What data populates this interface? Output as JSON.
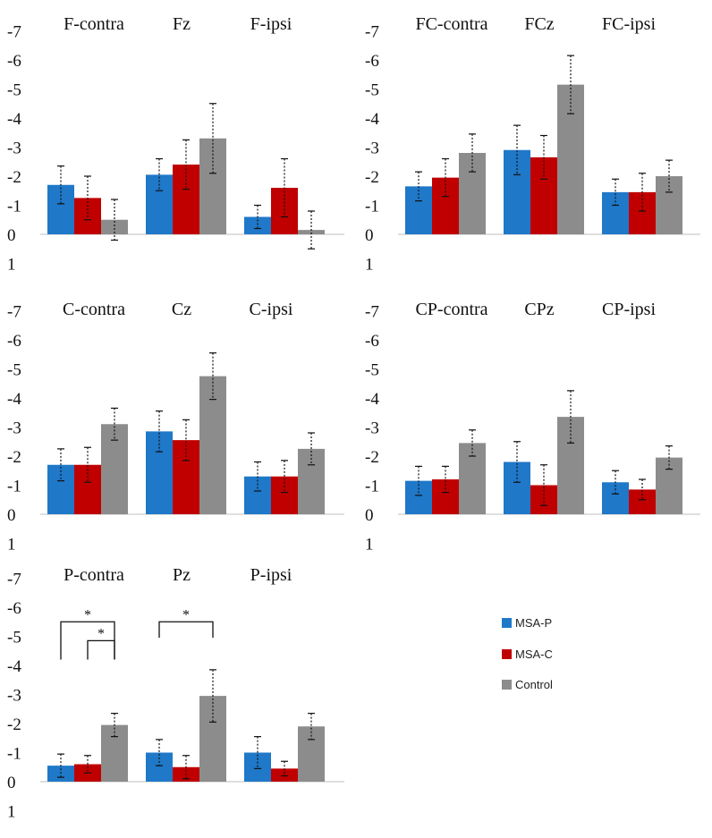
{
  "colors": {
    "MSA-P": "#1f78c8",
    "MSA-C": "#c00000",
    "Control": "#8c8c8c"
  },
  "legend": {
    "items": [
      {
        "label": "MSA-P",
        "color": "#1f78c8"
      },
      {
        "label": "MSA-C",
        "color": "#c00000"
      },
      {
        "label": "Control",
        "color": "#8c8c8c"
      }
    ]
  },
  "chart_data": [
    {
      "type": "bar",
      "region": "F",
      "yticks": [
        "-7",
        "-6",
        "-5",
        "-4",
        "-3",
        "-2",
        "-1",
        "0",
        "1"
      ],
      "ylim": [
        1,
        -7
      ],
      "categories": [
        "F-contra",
        "Fz",
        "F-ipsi"
      ],
      "series": [
        {
          "name": "MSA-P",
          "values": [
            -1.7,
            -2.05,
            -0.6
          ],
          "errors": [
            0.65,
            0.55,
            0.4
          ]
        },
        {
          "name": "MSA-C",
          "values": [
            -1.25,
            -2.4,
            -1.6
          ],
          "errors": [
            0.75,
            0.85,
            1.0
          ]
        },
        {
          "name": "Control",
          "values": [
            -0.5,
            -3.3,
            -0.15
          ],
          "errors": [
            0.7,
            1.2,
            0.65
          ]
        }
      ],
      "annotations": []
    },
    {
      "type": "bar",
      "region": "FC",
      "yticks": [
        "-7",
        "-6",
        "-5",
        "-4",
        "-3",
        "-2",
        "-1",
        "0",
        "1"
      ],
      "ylim": [
        1,
        -7
      ],
      "categories": [
        "FC-contra",
        "FCz",
        "FC-ipsi"
      ],
      "series": [
        {
          "name": "MSA-P",
          "values": [
            -1.65,
            -2.9,
            -1.45
          ],
          "errors": [
            0.5,
            0.85,
            0.45
          ]
        },
        {
          "name": "MSA-C",
          "values": [
            -1.95,
            -2.65,
            -1.45
          ],
          "errors": [
            0.65,
            0.75,
            0.65
          ]
        },
        {
          "name": "Control",
          "values": [
            -2.8,
            -5.15,
            -2.0
          ],
          "errors": [
            0.65,
            1.0,
            0.55
          ]
        }
      ],
      "annotations": []
    },
    {
      "type": "bar",
      "region": "C",
      "yticks": [
        "-7",
        "-6",
        "-5",
        "-4",
        "-3",
        "-2",
        "-1",
        "0",
        "1"
      ],
      "ylim": [
        1,
        -7
      ],
      "categories": [
        "C-contra",
        "Cz",
        "C-ipsi"
      ],
      "series": [
        {
          "name": "MSA-P",
          "values": [
            -1.7,
            -2.85,
            -1.3
          ],
          "errors": [
            0.55,
            0.7,
            0.5
          ]
        },
        {
          "name": "MSA-C",
          "values": [
            -1.7,
            -2.55,
            -1.3
          ],
          "errors": [
            0.6,
            0.7,
            0.55
          ]
        },
        {
          "name": "Control",
          "values": [
            -3.1,
            -4.75,
            -2.25
          ],
          "errors": [
            0.55,
            0.8,
            0.55
          ]
        }
      ],
      "annotations": []
    },
    {
      "type": "bar",
      "region": "CP",
      "yticks": [
        "-7",
        "-6",
        "-5",
        "-4",
        "-3",
        "-2",
        "-1",
        "0",
        "1"
      ],
      "ylim": [
        1,
        -7
      ],
      "categories": [
        "CP-contra",
        "CPz",
        "CP-ipsi"
      ],
      "series": [
        {
          "name": "MSA-P",
          "values": [
            -1.15,
            -1.8,
            -1.1
          ],
          "errors": [
            0.5,
            0.7,
            0.4
          ]
        },
        {
          "name": "MSA-C",
          "values": [
            -1.2,
            -1.0,
            -0.85
          ],
          "errors": [
            0.45,
            0.7,
            0.35
          ]
        },
        {
          "name": "Control",
          "values": [
            -2.45,
            -3.35,
            -1.95
          ],
          "errors": [
            0.45,
            0.9,
            0.4
          ]
        }
      ],
      "annotations": []
    },
    {
      "type": "bar",
      "region": "P",
      "yticks": [
        "-7",
        "-6",
        "-5",
        "-4",
        "-3",
        "-2",
        "-1",
        "0",
        "1"
      ],
      "ylim": [
        1,
        -7
      ],
      "categories": [
        "P-contra",
        "Pz",
        "P-ipsi"
      ],
      "series": [
        {
          "name": "MSA-P",
          "values": [
            -0.55,
            -1.0,
            -1.0
          ],
          "errors": [
            0.4,
            0.45,
            0.55
          ]
        },
        {
          "name": "MSA-C",
          "values": [
            -0.6,
            -0.5,
            -0.45
          ],
          "errors": [
            0.3,
            0.4,
            0.25
          ]
        },
        {
          "name": "Control",
          "values": [
            -1.95,
            -2.95,
            -1.9
          ],
          "errors": [
            0.4,
            0.9,
            0.45
          ]
        }
      ],
      "annotations": [
        {
          "label": "*",
          "from": {
            "category": 0,
            "series": 0
          },
          "to": {
            "category": 0,
            "series": 2
          },
          "level": -5.5,
          "bottom": -4.2
        },
        {
          "label": "*",
          "from": {
            "category": 0,
            "series": 1
          },
          "to": {
            "category": 0,
            "series": 2
          },
          "level": -4.85,
          "bottom": -4.2
        },
        {
          "label": "*",
          "from": {
            "category": 1,
            "series": 0
          },
          "to": {
            "category": 1,
            "series": 2
          },
          "level": -5.5,
          "bottom": -4.95
        }
      ]
    }
  ]
}
